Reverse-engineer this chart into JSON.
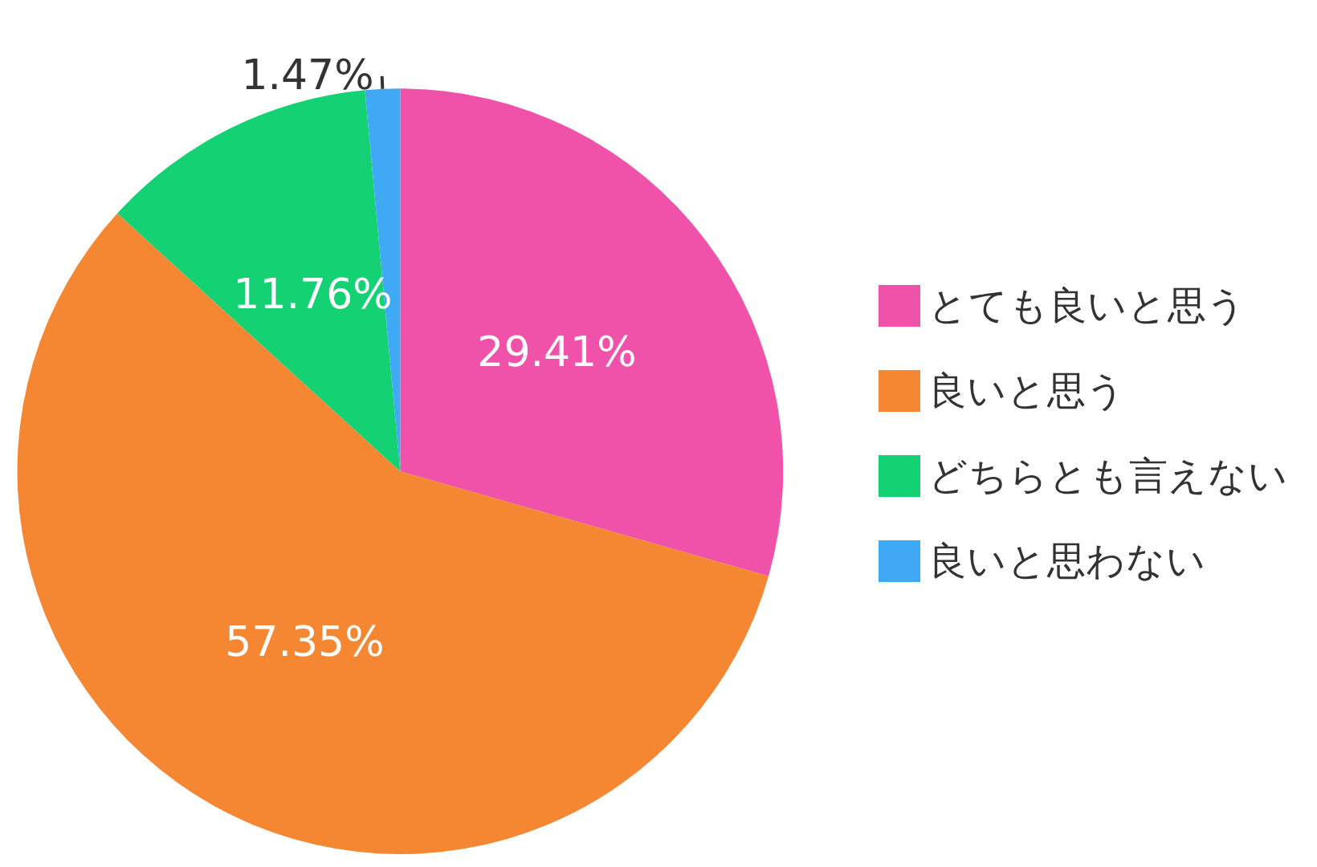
{
  "chart_data": {
    "type": "pie",
    "categories": [
      "とても良いと思う",
      "良いと思う",
      "どちらとも言えない",
      "良いと思わない"
    ],
    "values": [
      29.41,
      57.35,
      11.76,
      1.47
    ],
    "colors": [
      "#ef52a8",
      "#f58733",
      "#14d274",
      "#3fa9f5"
    ],
    "value_labels": [
      "29.41%",
      "57.35%",
      "11.76%",
      "1.47%"
    ],
    "legend": "right"
  }
}
